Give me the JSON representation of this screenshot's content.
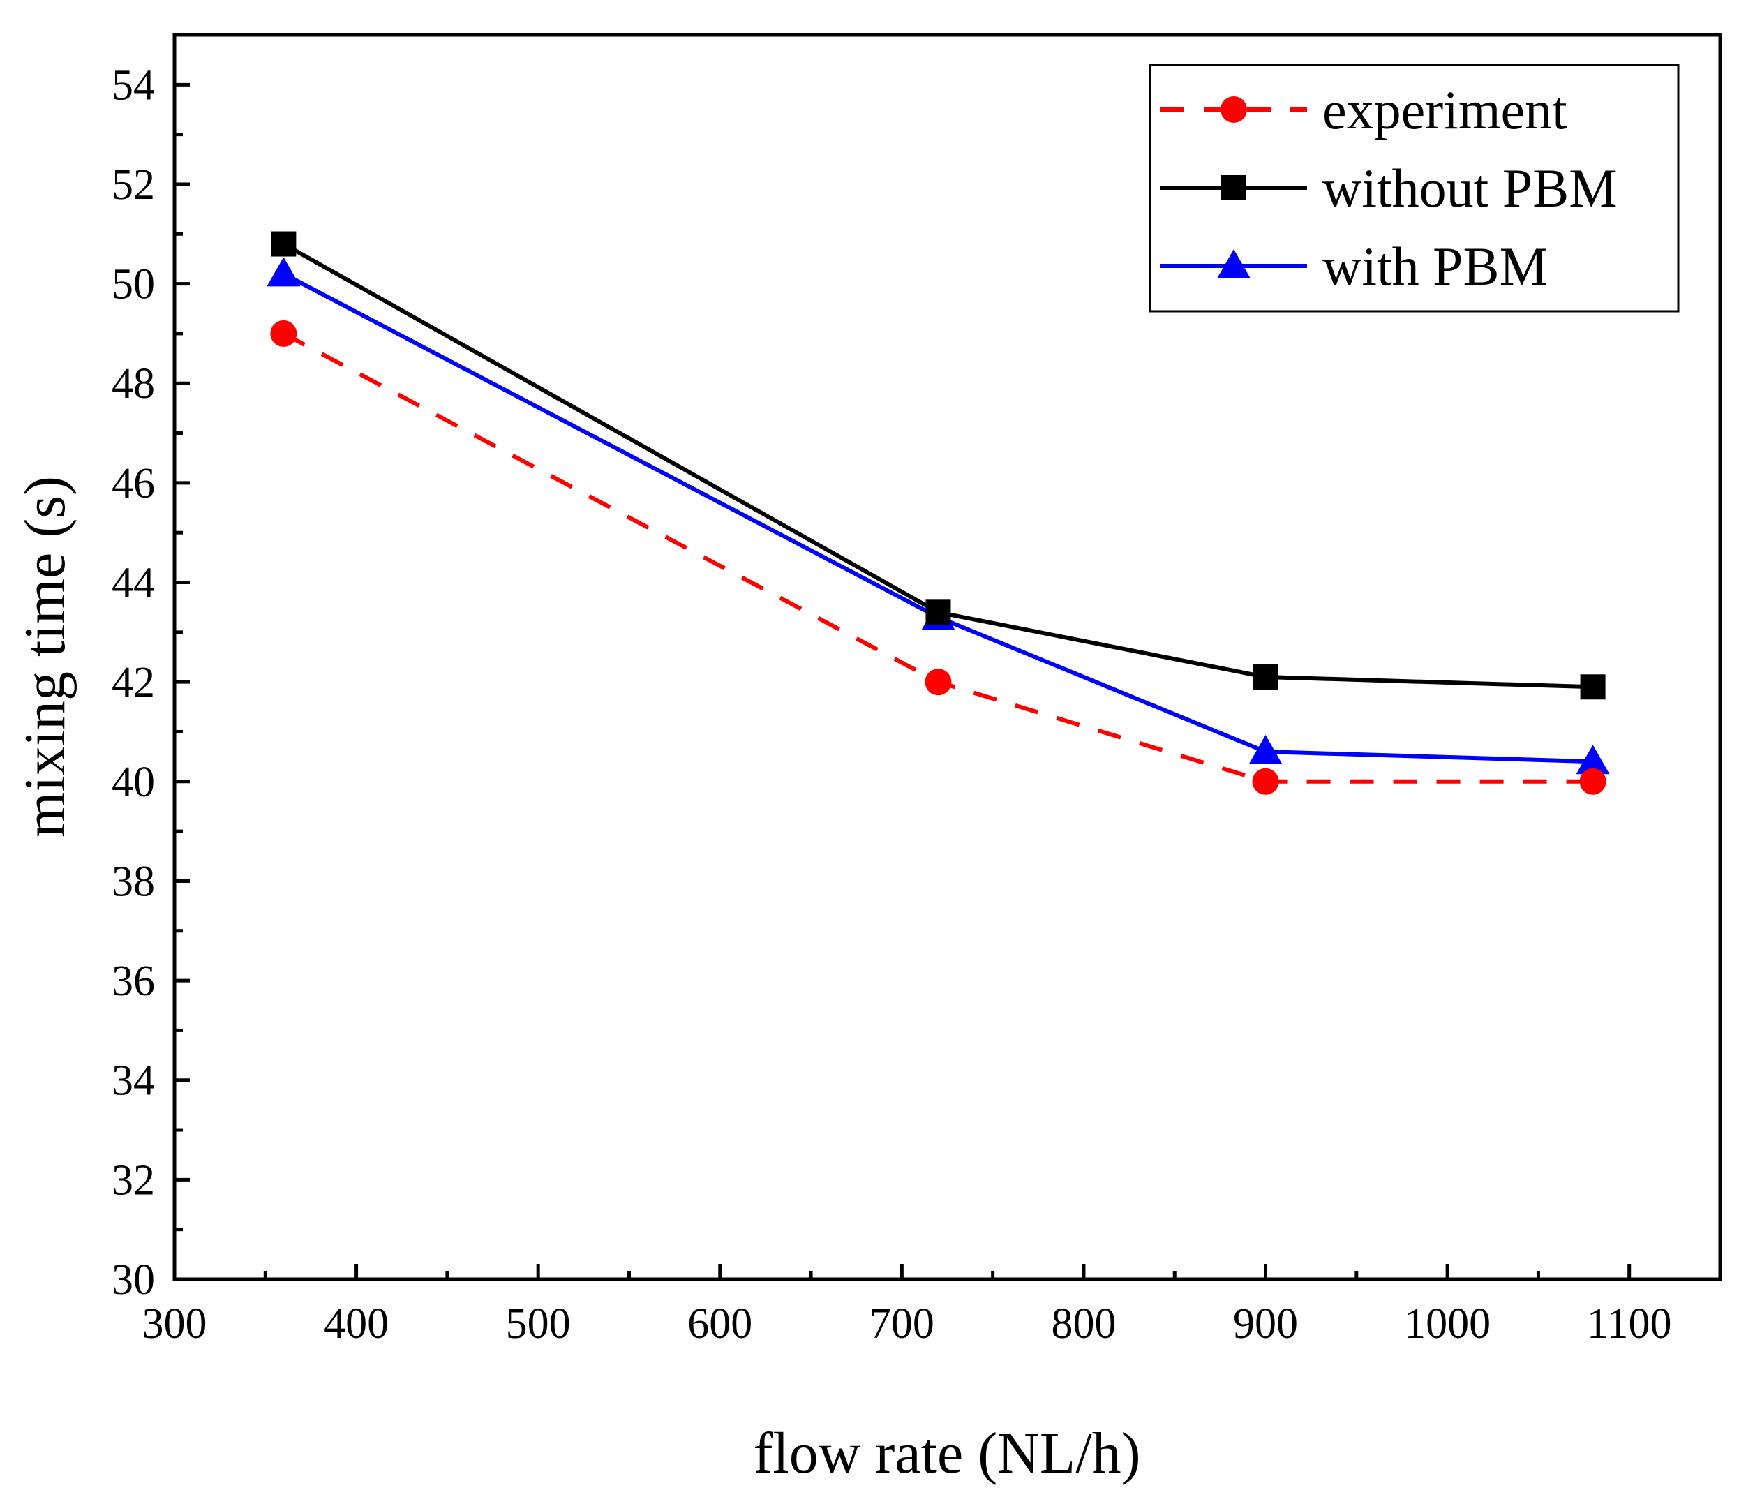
{
  "chart_data": {
    "type": "line",
    "title": "",
    "xlabel": "flow rate (NL/h)",
    "ylabel": "mixing time (s)",
    "xlim": [
      300,
      1150
    ],
    "ylim": [
      30,
      55
    ],
    "x_ticks": [
      "300",
      "400",
      "500",
      "600",
      "700",
      "800",
      "900",
      "1000",
      "1100"
    ],
    "y_ticks": [
      "30",
      "32",
      "34",
      "36",
      "38",
      "40",
      "42",
      "44",
      "46",
      "48",
      "50",
      "52",
      "54"
    ],
    "x": [
      360,
      720,
      900,
      1080
    ],
    "legend_position": "top-right",
    "series": [
      {
        "name": "experiment",
        "values": [
          49,
          42,
          40,
          40
        ],
        "color": "#ff0000",
        "marker": "circle",
        "line": "dashed"
      },
      {
        "name": "without PBM",
        "values": [
          50.8,
          43.4,
          42.1,
          41.9
        ],
        "color": "#000000",
        "marker": "square",
        "line": "solid"
      },
      {
        "name": "with PBM",
        "values": [
          50.2,
          43.3,
          40.6,
          40.4
        ],
        "color": "#0000ff",
        "marker": "triangle",
        "line": "solid"
      }
    ],
    "grid": false
  }
}
